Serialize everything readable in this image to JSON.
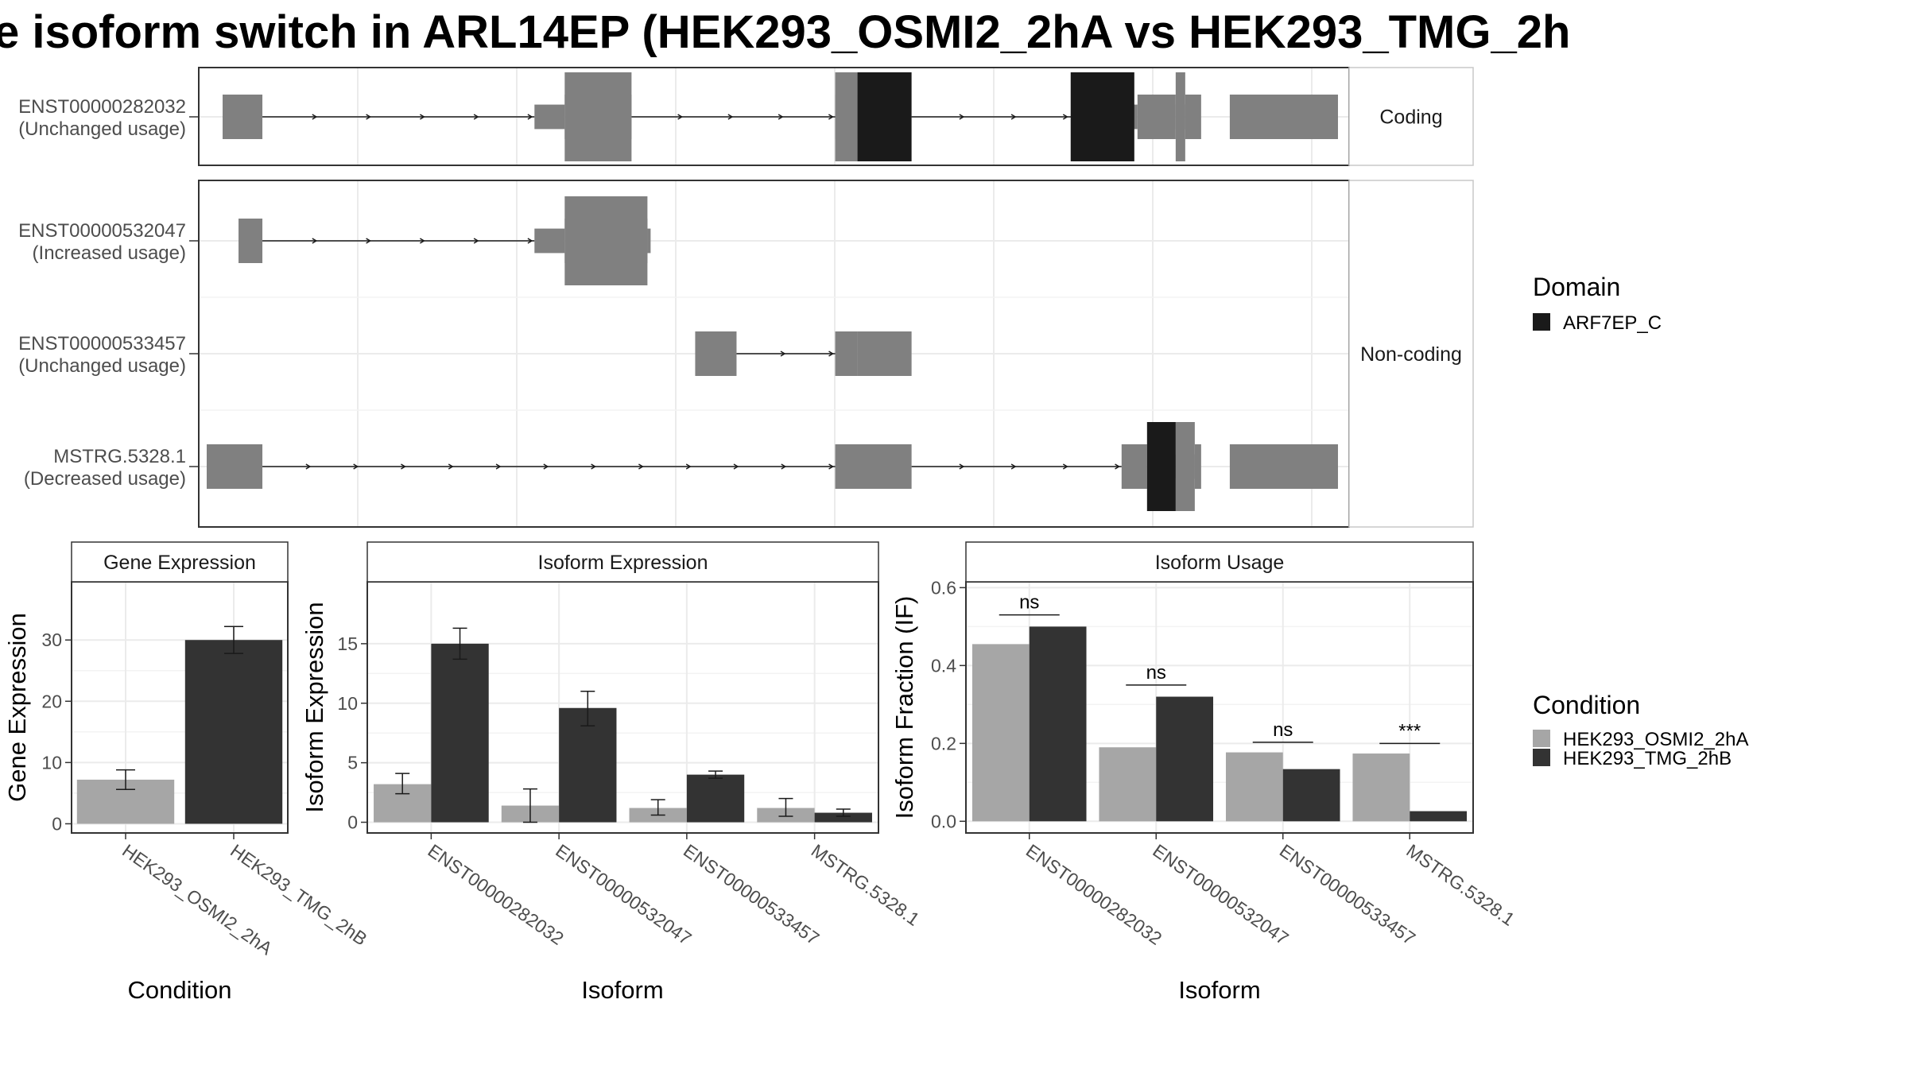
{
  "title": "e isoform switch in ARL14EP (HEK293_OSMI2_2hA vs HEK293_TMG_2h",
  "colors": {
    "exon": "#808080",
    "domain": "#1a1a1a",
    "condition_a": "#a6a6a6",
    "condition_b": "#333333"
  },
  "structure": {
    "panels": [
      {
        "strip_label": "Coding",
        "transcripts": [
          {
            "id": "ENST00000282032",
            "usage": "(Unchanged usage)",
            "exons": [
              [
                15,
                40
              ],
              [
                230,
                272
              ],
              [
                400,
                414
              ],
              [
                590,
                614
              ],
              [
                620,
                630
              ],
              [
                648,
                716
              ]
            ],
            "utrs": [
              [
                211,
                230
              ],
              [
                580,
                590
              ],
              [
                614,
                620
              ]
            ],
            "domains": [
              [
                414,
                448
              ],
              [
                548,
                588
              ]
            ],
            "introns": [
              [
                40,
                211
              ],
              [
                272,
                400
              ],
              [
                448,
                580
              ]
            ]
          }
        ]
      },
      {
        "strip_label": "Non-coding",
        "transcripts": [
          {
            "id": "ENST00000532047",
            "usage": "(Increased usage)",
            "exons": [
              [
                25,
                40
              ],
              [
                230,
                282
              ]
            ],
            "utrs": [
              [
                211,
                230
              ],
              [
                282,
                284
              ]
            ],
            "domains": [],
            "introns": [
              [
                40,
                211
              ]
            ]
          },
          {
            "id": "ENST00000533457",
            "usage": "(Unchanged usage)",
            "exons": [
              [
                312,
                338
              ],
              [
                400,
                414
              ],
              [
                414,
                448
              ]
            ],
            "utrs": [],
            "domains": [],
            "introns": [
              [
                338,
                400
              ]
            ]
          },
          {
            "id": "MSTRG.5328.1",
            "usage": "(Decreased usage)",
            "exons": [
              [
                5,
                40
              ],
              [
                400,
                448
              ],
              [
                580,
                596
              ],
              [
                626,
                630
              ],
              [
                648,
                716
              ]
            ],
            "utrs": [
              [
                614,
                626
              ]
            ],
            "domains": [
              [
                596,
                614
              ]
            ],
            "introns": [
              [
                40,
                400
              ],
              [
                448,
                580
              ]
            ]
          }
        ]
      }
    ]
  },
  "legend_domain": {
    "title": "Domain",
    "items": [
      {
        "label": "ARF7EP_C",
        "color": "#1a1a1a"
      }
    ]
  },
  "legend_condition": {
    "title": "Condition",
    "items": [
      {
        "label": "HEK293_OSMI2_2hA",
        "color": "#a6a6a6"
      },
      {
        "label": "HEK293_TMG_2hB",
        "color": "#333333"
      }
    ]
  },
  "chart_data": [
    {
      "type": "bar",
      "title": "Gene Expression",
      "xlabel": "Condition",
      "ylabel": "Gene Expression",
      "categories": [
        "HEK293_OSMI2_2hA",
        "HEK293_TMG_2hB"
      ],
      "values": [
        7.2,
        30.0
      ],
      "errors": [
        [
          5.6,
          8.8
        ],
        [
          27.8,
          32.2
        ]
      ],
      "ylim": [
        -1.5,
        39.5
      ],
      "yticks": [
        0,
        10,
        20,
        30
      ]
    },
    {
      "type": "bar",
      "title": "Isoform Expression",
      "xlabel": "Isoform",
      "ylabel": "Isoform Expression",
      "categories": [
        "ENST00000282032",
        "ENST00000532047",
        "ENST00000533457",
        "MSTRG.5328.1"
      ],
      "series": [
        {
          "name": "HEK293_OSMI2_2hA",
          "values": [
            3.2,
            1.4,
            1.2,
            1.2
          ],
          "errors": [
            [
              2.4,
              4.1
            ],
            [
              0.0,
              2.8
            ],
            [
              0.6,
              1.9
            ],
            [
              0.5,
              2.0
            ]
          ]
        },
        {
          "name": "HEK293_TMG_2hB",
          "values": [
            15.0,
            9.6,
            4.0,
            0.8
          ],
          "errors": [
            [
              13.7,
              16.3
            ],
            [
              8.1,
              11.0
            ],
            [
              3.7,
              4.3
            ],
            [
              0.5,
              1.1
            ]
          ]
        }
      ],
      "ylim": [
        -0.9,
        20.2
      ],
      "yticks": [
        0,
        5,
        10,
        15
      ]
    },
    {
      "type": "bar",
      "title": "Isoform Usage",
      "xlabel": "Isoform",
      "ylabel": "Isoform Fraction (IF)",
      "categories": [
        "ENST00000282032",
        "ENST00000532047",
        "ENST00000533457",
        "MSTRG.5328.1"
      ],
      "series": [
        {
          "name": "HEK293_OSMI2_2hA",
          "values": [
            0.455,
            0.19,
            0.177,
            0.174
          ]
        },
        {
          "name": "HEK293_TMG_2hB",
          "values": [
            0.5,
            0.32,
            0.134,
            0.026
          ]
        }
      ],
      "significance": [
        "ns",
        "ns",
        "ns",
        "***"
      ],
      "significance_y": [
        0.53,
        0.35,
        0.203,
        0.2
      ],
      "ylim": [
        -0.03,
        0.615
      ],
      "yticks": [
        0.0,
        0.2,
        0.4,
        0.6
      ],
      "ytick_labels": [
        "0.0",
        "0.2",
        "0.4",
        "0.6"
      ]
    }
  ]
}
